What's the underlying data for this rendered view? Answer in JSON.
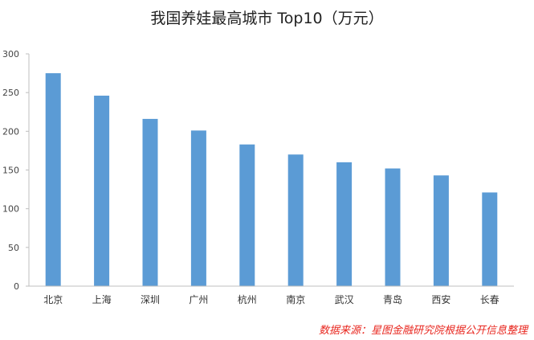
{
  "chart_data": {
    "type": "bar",
    "title": "我国养娃最高城市 Top10（万元）",
    "categories": [
      "北京",
      "上海",
      "深圳",
      "广州",
      "杭州",
      "南京",
      "武汉",
      "青岛",
      "西安",
      "长春"
    ],
    "values": [
      275,
      246,
      216,
      201,
      183,
      170,
      160,
      152,
      143,
      121
    ],
    "ylim": [
      0,
      300
    ],
    "yticks": [
      0,
      50,
      100,
      150,
      200,
      250,
      300
    ],
    "grid": false,
    "bar_color": "#5b9bd5",
    "source": "数据来源：星图金融研究院根据公开信息整理"
  }
}
